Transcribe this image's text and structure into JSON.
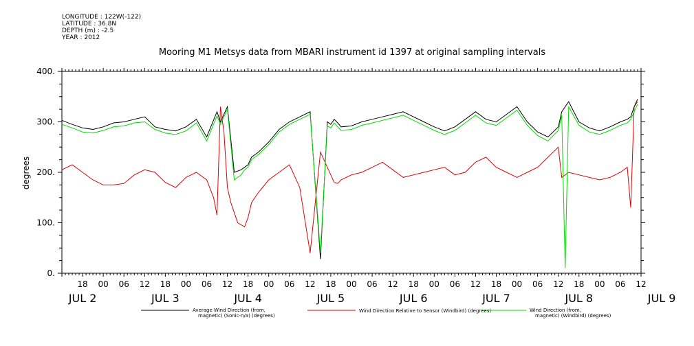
{
  "header": {
    "longitude": "LONGITUDE : 122W(-122)",
    "latitude": "LATITUDE : 36.8N",
    "depth": "DEPTH (m) : -2.5",
    "year": "YEAR : 2012"
  },
  "chart_data": {
    "type": "line",
    "title": "Mooring M1 Metsys data from MBARI instrument id 1397 at original sampling intervals",
    "ylabel": "degrees",
    "ylim": [
      0,
      400
    ],
    "xlim_hours": [
      0,
      168
    ],
    "y_ticks": [
      "0.",
      "100.",
      "200.",
      "300.",
      "400."
    ],
    "y_tick_values": [
      0,
      100,
      200,
      300,
      400
    ],
    "x_hour_labels": [
      "18",
      "00",
      "06",
      "12",
      "18",
      "00",
      "06",
      "12",
      "18",
      "00",
      "06",
      "12",
      "18",
      "00",
      "06",
      "12",
      "18",
      "00",
      "06",
      "12",
      "18",
      "00",
      "06",
      "12",
      "18",
      "00",
      "06",
      "12"
    ],
    "x_day_labels": [
      "JUL 2",
      "JUL 3",
      "JUL 4",
      "JUL 5",
      "JUL 6",
      "JUL 7",
      "JUL 8",
      "JUL 9"
    ],
    "grid": false,
    "legend_position": "bottom",
    "series": [
      {
        "name": "Average Wind Direction (from, magnetic) (Sonic-n/a) (degrees)",
        "name_line1": "Average Wind Direction (from,",
        "name_line2": "magnetic) (Sonic-n/a) (degrees)",
        "color": "#000000",
        "x_hours": [
          0,
          3,
          6,
          9,
          12,
          15,
          18,
          21,
          24,
          27,
          30,
          33,
          36,
          39,
          42,
          45,
          46,
          48,
          50,
          52,
          53,
          54,
          55,
          57,
          60,
          63,
          66,
          69,
          72,
          75,
          77,
          78,
          79,
          80,
          81,
          84,
          87,
          90,
          93,
          96,
          99,
          102,
          105,
          108,
          111,
          114,
          117,
          120,
          123,
          126,
          129,
          132,
          135,
          138,
          141,
          144,
          145,
          147,
          150,
          153,
          156,
          159,
          162,
          164,
          165,
          166,
          167
        ],
        "values": [
          303,
          295,
          288,
          285,
          290,
          298,
          300,
          305,
          310,
          290,
          285,
          282,
          290,
          305,
          270,
          320,
          300,
          330,
          200,
          205,
          210,
          215,
          230,
          240,
          260,
          285,
          300,
          310,
          320,
          28,
          300,
          295,
          305,
          298,
          290,
          292,
          300,
          305,
          310,
          315,
          320,
          310,
          300,
          290,
          282,
          290,
          305,
          320,
          305,
          300,
          315,
          330,
          300,
          280,
          270,
          290,
          320,
          340,
          300,
          288,
          282,
          290,
          300,
          305,
          310,
          330,
          345
        ]
      },
      {
        "name": "Wind Direction Relative to Sensor (Windbird) (degrees)",
        "color": "#e00000",
        "x_hours": [
          0,
          3,
          6,
          9,
          12,
          15,
          18,
          21,
          24,
          27,
          30,
          33,
          36,
          39,
          42,
          44,
          45,
          46,
          47,
          48,
          49,
          50,
          51,
          53,
          54,
          55,
          57,
          60,
          63,
          66,
          69,
          72,
          75,
          77,
          78,
          79,
          80,
          81,
          84,
          87,
          90,
          93,
          96,
          99,
          102,
          105,
          108,
          111,
          114,
          117,
          120,
          123,
          126,
          129,
          132,
          135,
          138,
          141,
          144,
          145,
          147,
          150,
          153,
          156,
          159,
          162,
          164,
          165,
          166,
          167
        ],
        "values": [
          205,
          215,
          200,
          185,
          175,
          175,
          178,
          195,
          205,
          200,
          180,
          170,
          190,
          200,
          185,
          150,
          115,
          330,
          280,
          170,
          140,
          120,
          100,
          92,
          110,
          140,
          160,
          185,
          200,
          215,
          170,
          40,
          240,
          210,
          195,
          180,
          178,
          185,
          195,
          200,
          210,
          220,
          205,
          190,
          195,
          200,
          205,
          210,
          195,
          200,
          220,
          230,
          210,
          200,
          190,
          200,
          210,
          230,
          250,
          190,
          200,
          195,
          190,
          185,
          190,
          200,
          210,
          130,
          330,
          340
        ]
      },
      {
        "name": "Wind Direction (from, magnetic) (Windbird) (degrees)",
        "name_line1": "Wind Direction (from,",
        "name_line2": "magnetic) (Windbird) (degrees)",
        "color": "#00dd00",
        "x_hours": [
          0,
          3,
          6,
          9,
          12,
          15,
          18,
          21,
          24,
          27,
          30,
          33,
          36,
          39,
          42,
          45,
          46,
          48,
          50,
          52,
          53,
          54,
          55,
          57,
          60,
          63,
          66,
          69,
          72,
          75,
          77,
          78,
          79,
          80,
          81,
          84,
          87,
          90,
          93,
          96,
          99,
          102,
          105,
          108,
          111,
          114,
          117,
          120,
          123,
          126,
          129,
          132,
          135,
          138,
          141,
          144,
          145,
          146,
          147,
          150,
          153,
          156,
          159,
          162,
          164,
          165,
          166,
          167
        ],
        "values": [
          295,
          288,
          280,
          278,
          283,
          290,
          292,
          298,
          300,
          285,
          278,
          275,
          282,
          298,
          262,
          312,
          295,
          325,
          185,
          195,
          205,
          210,
          225,
          235,
          255,
          280,
          295,
          305,
          315,
          40,
          292,
          288,
          298,
          290,
          283,
          285,
          293,
          298,
          303,
          308,
          313,
          303,
          293,
          283,
          275,
          283,
          298,
          313,
          298,
          293,
          308,
          323,
          293,
          273,
          262,
          283,
          313,
          10,
          330,
          293,
          280,
          275,
          283,
          293,
          298,
          305,
          320,
          335
        ]
      }
    ]
  }
}
